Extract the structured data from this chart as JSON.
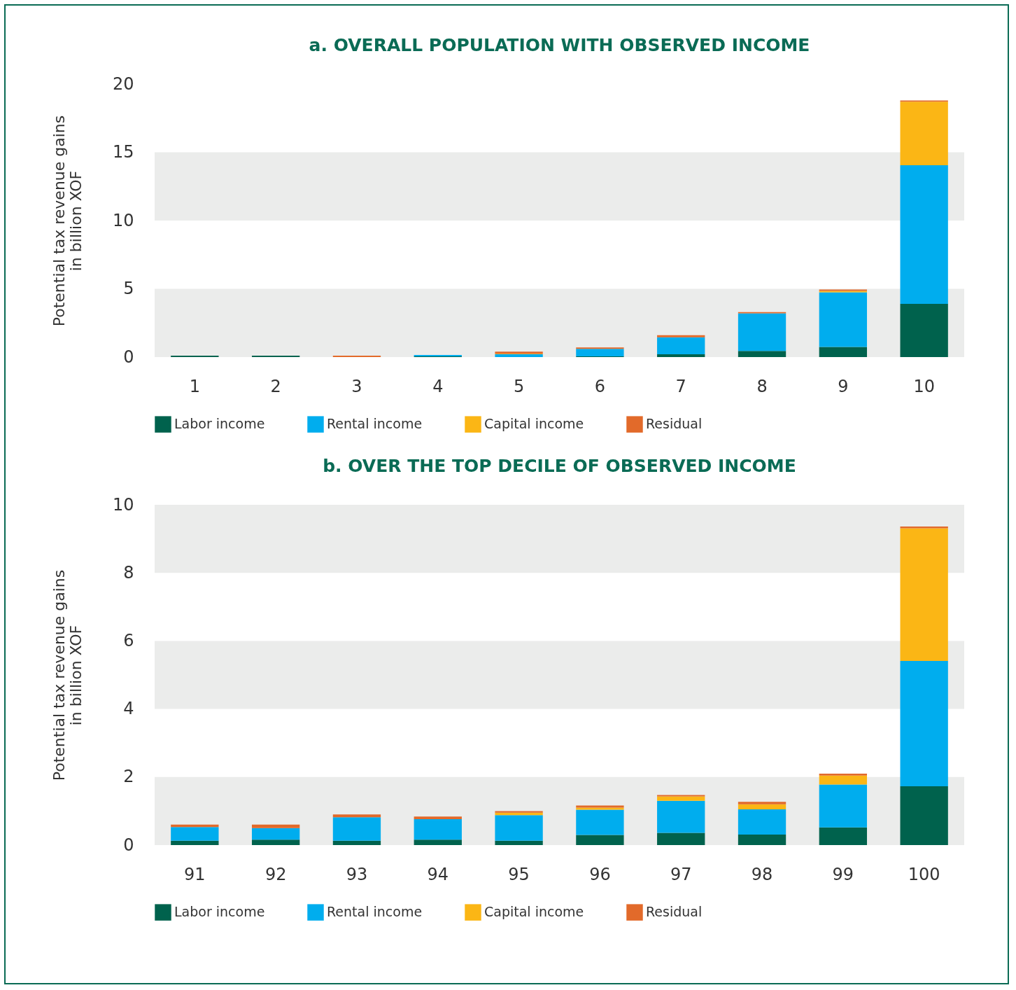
{
  "chart_data": [
    {
      "type": "bar",
      "title": "a. OVERALL POPULATION WITH OBSERVED INCOME",
      "ylabel": "Potential tax revenue gains\nin billion XOF",
      "categories": [
        "1",
        "2",
        "3",
        "4",
        "5",
        "6",
        "7",
        "8",
        "9",
        "10"
      ],
      "stacked": true,
      "legend": "bottom",
      "grid": false,
      "ylim": [
        0,
        20
      ],
      "yticks": [
        0,
        5,
        10,
        15,
        20
      ],
      "bands": [
        {
          "axis": "y",
          "from": 0,
          "to": 5,
          "color": "#ebeceb"
        },
        {
          "axis": "y",
          "from": 10,
          "to": 15,
          "color": "#ebeceb"
        }
      ],
      "series": [
        {
          "name": "Labor income",
          "color": "#00624d",
          "values": [
            0.1,
            0.1,
            0,
            0.05,
            0,
            0.05,
            0.2,
            0.45,
            0.75,
            3.9
          ]
        },
        {
          "name": "Rental income",
          "color": "#00adee",
          "values": [
            0,
            0,
            0,
            0.1,
            0.2,
            0.55,
            1.25,
            2.75,
            4,
            10.15
          ]
        },
        {
          "name": "Capital income",
          "color": "#fbb615",
          "values": [
            0,
            0,
            0,
            0,
            0.05,
            0,
            0,
            0,
            0.1,
            4.65
          ]
        },
        {
          "name": "Residual",
          "color": "#e26a2a",
          "values": [
            0,
            0,
            0.1,
            0,
            0.15,
            0.1,
            0.15,
            0.1,
            0.1,
            0.1
          ]
        }
      ]
    },
    {
      "type": "bar",
      "title": "b. OVER THE TOP DECILE OF OBSERVED INCOME",
      "ylabel": "Potential tax revenue gains\nin billion XOF",
      "categories": [
        "91",
        "92",
        "93",
        "94",
        "95",
        "96",
        "97",
        "98",
        "99",
        "100"
      ],
      "stacked": true,
      "legend": "bottom",
      "grid": false,
      "ylim": [
        0,
        10
      ],
      "yticks": [
        0,
        2,
        4,
        6,
        8,
        10
      ],
      "bands": [
        {
          "axis": "y",
          "from": 0,
          "to": 2,
          "color": "#ebeceb"
        },
        {
          "axis": "y",
          "from": 4,
          "to": 6,
          "color": "#ebeceb"
        },
        {
          "axis": "y",
          "from": 8,
          "to": 10,
          "color": "#ebeceb"
        }
      ],
      "series": [
        {
          "name": "Labor income",
          "color": "#00624d",
          "values": [
            0.13,
            0.16,
            0.13,
            0.16,
            0.13,
            0.3,
            0.36,
            0.31,
            0.52,
            1.73
          ]
        },
        {
          "name": "Rental income",
          "color": "#00adee",
          "values": [
            0.4,
            0.34,
            0.69,
            0.6,
            0.75,
            0.74,
            0.94,
            0.74,
            1.26,
            3.68
          ]
        },
        {
          "name": "Capital income",
          "color": "#fbb615",
          "values": [
            0,
            0,
            0,
            0,
            0.07,
            0.06,
            0.13,
            0.15,
            0.26,
            3.9
          ]
        },
        {
          "name": "Residual",
          "color": "#e26a2a",
          "values": [
            0.07,
            0.1,
            0.08,
            0.08,
            0.05,
            0.06,
            0.04,
            0.07,
            0.06,
            0.05
          ]
        }
      ]
    }
  ]
}
